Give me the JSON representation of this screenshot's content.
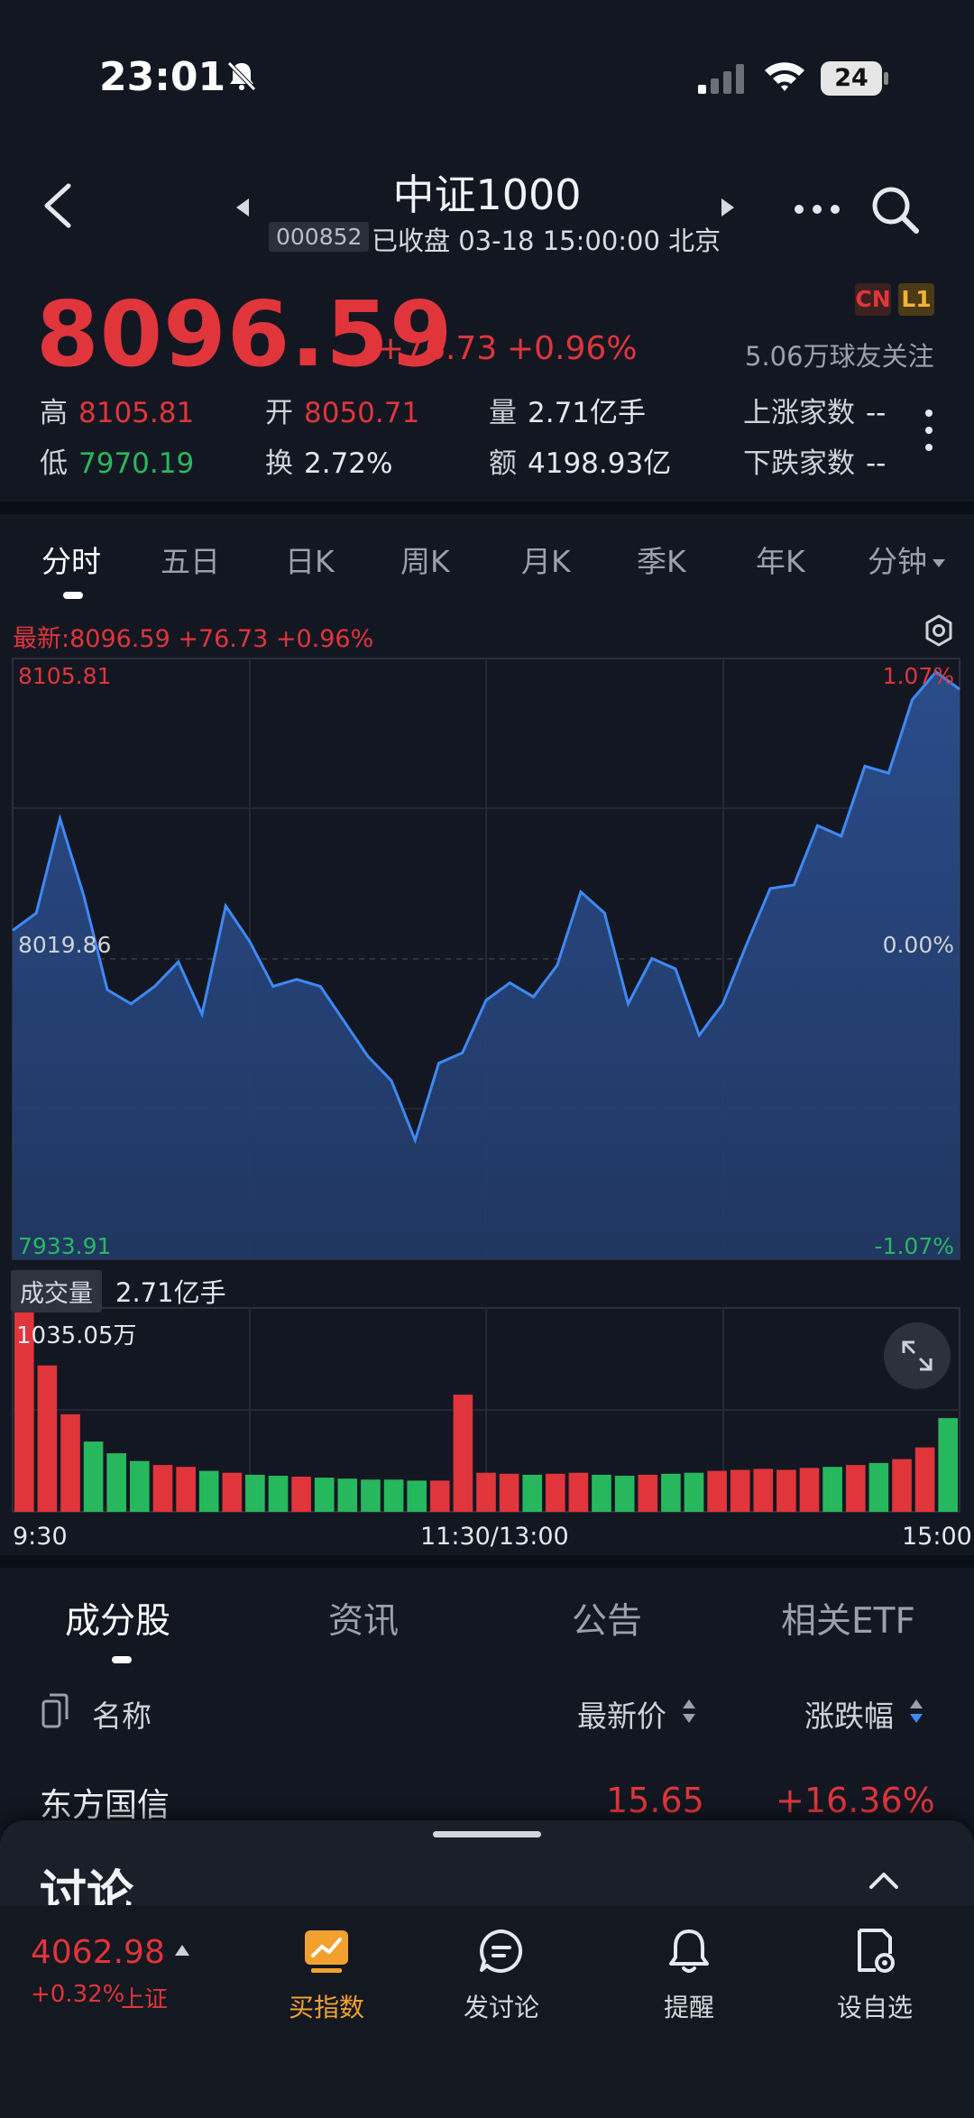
{
  "status_bar": {
    "time": "23:01",
    "battery": "24"
  },
  "header": {
    "title": "中证1000",
    "code": "000852",
    "status": "已收盘 03-18 15:00:00 北京"
  },
  "quote": {
    "price": "8096.59",
    "change": "+76.73",
    "change_pct": "+0.96%",
    "badge_cn": "CN",
    "badge_l1": "L1",
    "followers": "5.06万球友关注",
    "stats": {
      "high_label": "高",
      "high": "8105.81",
      "low_label": "低",
      "low": "7970.19",
      "open_label": "开",
      "open": "8050.71",
      "turnover_label": "换",
      "turnover": "2.72%",
      "volume_label": "量",
      "volume": "2.71亿手",
      "amount_label": "额",
      "amount": "4198.93亿",
      "up_label": "上涨家数",
      "up_value": "--",
      "down_label": "下跌家数",
      "down_value": "--"
    }
  },
  "chart_tabs": [
    "分时",
    "五日",
    "日K",
    "周K",
    "月K",
    "季K",
    "年K",
    "分钟"
  ],
  "chart": {
    "latest_line": "最新:8096.59  +76.73  +0.96%",
    "price_top": "8105.81",
    "price_mid": "8019.86",
    "price_bottom": "7933.91",
    "pct_top": "1.07%",
    "pct_mid": "0.00%",
    "pct_bottom": "-1.07%",
    "volume_label": "成交量",
    "volume_total": "2.71亿手",
    "volume_max": "1035.05万",
    "time_start": "9:30",
    "time_mid": "11:30/13:00",
    "time_end": "15:00",
    "line_color": "#3d8af7",
    "up_color": "#e0353b",
    "down_color": "#27b85e"
  },
  "chart_data": {
    "type": "line",
    "x": [
      0,
      6,
      12,
      18,
      24,
      30,
      36,
      42,
      48,
      54,
      60,
      66,
      72,
      78,
      84,
      90,
      96,
      102,
      108,
      114,
      120,
      126,
      132,
      138,
      144,
      150,
      156,
      162,
      168,
      174,
      180,
      186,
      192,
      198,
      204,
      210,
      216,
      222,
      228,
      234,
      240
    ],
    "series": [
      {
        "values": [
          8028,
          8033,
          8060,
          8038,
          8011,
          8007,
          8012,
          8019,
          8004,
          8035,
          8025,
          8012,
          8014,
          8012,
          8002,
          7992,
          7985,
          7968,
          7990,
          7993,
          8008,
          8013,
          8009,
          8018,
          8039,
          8033,
          8007,
          8020,
          8017,
          7998,
          8007,
          8024,
          8040,
          8041,
          8058,
          8055,
          8075,
          8073,
          8094,
          8102,
          8097
        ],
        "volume": [
          1035,
          750,
          500,
          360,
          300,
          260,
          240,
          230,
          210,
          200,
          190,
          185,
          180,
          175,
          170,
          165,
          165,
          160,
          160,
          600,
          200,
          195,
          190,
          195,
          200,
          190,
          185,
          190,
          195,
          200,
          210,
          215,
          220,
          215,
          225,
          230,
          240,
          250,
          270,
          330,
          480
        ]
      }
    ],
    "ylim": [
      7933.91,
      8105.81
    ],
    "xlim": [
      0,
      240
    ]
  },
  "sub_tabs": [
    "成分股",
    "资讯",
    "公告",
    "相关ETF"
  ],
  "list": {
    "col_name": "名称",
    "col_price": "最新价",
    "col_change": "涨跌幅",
    "row": {
      "name": "东方国信",
      "price": "15.65",
      "change": "+16.36%"
    }
  },
  "discussion": {
    "title": "讨论"
  },
  "bottom_bar": {
    "index_value": "4062.98",
    "index_change": "+0.32%",
    "index_name": "上证",
    "nav": [
      "买指数",
      "发讨论",
      "提醒",
      "设自选"
    ]
  }
}
